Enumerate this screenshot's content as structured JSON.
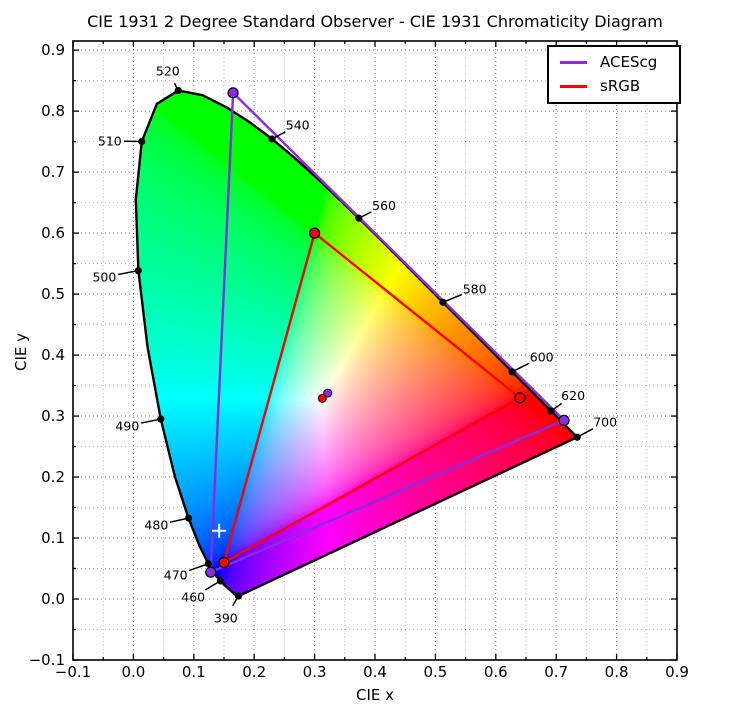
{
  "title": "CIE 1931 2 Degree Standard Observer - CIE 1931 Chromaticity Diagram",
  "axes": {
    "xlabel": "CIE x",
    "ylabel": "CIE y",
    "xlim": [
      -0.1,
      0.9
    ],
    "ylim": [
      -0.1,
      0.9
    ],
    "xticks": [
      {
        "v": -0.1,
        "label": "−0.1"
      },
      {
        "v": 0.0,
        "label": "0.0"
      },
      {
        "v": 0.1,
        "label": "0.1"
      },
      {
        "v": 0.2,
        "label": "0.2"
      },
      {
        "v": 0.3,
        "label": "0.3"
      },
      {
        "v": 0.4,
        "label": "0.4"
      },
      {
        "v": 0.5,
        "label": "0.5"
      },
      {
        "v": 0.6,
        "label": "0.6"
      },
      {
        "v": 0.7,
        "label": "0.7"
      },
      {
        "v": 0.8,
        "label": "0.8"
      },
      {
        "v": 0.9,
        "label": "0.9"
      }
    ],
    "yticks": [
      {
        "v": -0.1,
        "label": "−0.1"
      },
      {
        "v": 0.0,
        "label": "0.0"
      },
      {
        "v": 0.1,
        "label": "0.1"
      },
      {
        "v": 0.2,
        "label": "0.2"
      },
      {
        "v": 0.3,
        "label": "0.3"
      },
      {
        "v": 0.4,
        "label": "0.4"
      },
      {
        "v": 0.5,
        "label": "0.5"
      },
      {
        "v": 0.6,
        "label": "0.6"
      },
      {
        "v": 0.7,
        "label": "0.7"
      },
      {
        "v": 0.8,
        "label": "0.8"
      },
      {
        "v": 0.9,
        "label": "0.9"
      }
    ],
    "minor_step": 0.05,
    "grid": "dotted, major and minor"
  },
  "legend": {
    "position": "upper right",
    "entries": [
      {
        "label": "ACEScg",
        "color": "#8A2BE2"
      },
      {
        "label": "sRGB",
        "color": "#FF0000"
      }
    ]
  },
  "chart_data": {
    "type": "chromaticity-diagram",
    "title": "CIE 1931 2 Degree Standard Observer - CIE 1931 Chromaticity Diagram",
    "xlabel": "CIE x",
    "ylabel": "CIE y",
    "xlim": [
      -0.1,
      0.9
    ],
    "ylim": [
      -0.1,
      0.9
    ],
    "spectral_locus": [
      [
        380,
        0.1741,
        0.005
      ],
      [
        385,
        0.174,
        0.005
      ],
      [
        390,
        0.1738,
        0.0049
      ],
      [
        395,
        0.1736,
        0.0049
      ],
      [
        400,
        0.1733,
        0.0048
      ],
      [
        405,
        0.173,
        0.0048
      ],
      [
        410,
        0.1726,
        0.0048
      ],
      [
        415,
        0.1721,
        0.0048
      ],
      [
        420,
        0.1714,
        0.0051
      ],
      [
        425,
        0.1703,
        0.0058
      ],
      [
        430,
        0.1689,
        0.0069
      ],
      [
        435,
        0.1669,
        0.0086
      ],
      [
        440,
        0.1644,
        0.0109
      ],
      [
        445,
        0.1611,
        0.0138
      ],
      [
        450,
        0.1566,
        0.0177
      ],
      [
        455,
        0.151,
        0.0227
      ],
      [
        460,
        0.144,
        0.0297
      ],
      [
        465,
        0.1355,
        0.0399
      ],
      [
        470,
        0.1241,
        0.0578
      ],
      [
        475,
        0.1096,
        0.0868
      ],
      [
        480,
        0.0913,
        0.1327
      ],
      [
        485,
        0.0687,
        0.2007
      ],
      [
        490,
        0.0454,
        0.295
      ],
      [
        495,
        0.0235,
        0.4127
      ],
      [
        500,
        0.0082,
        0.5384
      ],
      [
        505,
        0.0039,
        0.6548
      ],
      [
        510,
        0.0139,
        0.7502
      ],
      [
        515,
        0.0389,
        0.812
      ],
      [
        520,
        0.0743,
        0.8338
      ],
      [
        525,
        0.1142,
        0.8262
      ],
      [
        530,
        0.1547,
        0.8059
      ],
      [
        535,
        0.1929,
        0.7816
      ],
      [
        540,
        0.2296,
        0.7543
      ],
      [
        545,
        0.2658,
        0.7243
      ],
      [
        550,
        0.3016,
        0.6923
      ],
      [
        555,
        0.3373,
        0.6589
      ],
      [
        560,
        0.3731,
        0.6245
      ],
      [
        565,
        0.4087,
        0.5896
      ],
      [
        570,
        0.4441,
        0.5547
      ],
      [
        575,
        0.4788,
        0.5202
      ],
      [
        580,
        0.5125,
        0.4866
      ],
      [
        585,
        0.5448,
        0.4544
      ],
      [
        590,
        0.5752,
        0.4242
      ],
      [
        595,
        0.6029,
        0.3965
      ],
      [
        600,
        0.627,
        0.3725
      ],
      [
        605,
        0.6482,
        0.3514
      ],
      [
        610,
        0.6658,
        0.334
      ],
      [
        615,
        0.6801,
        0.3197
      ],
      [
        620,
        0.6915,
        0.3083
      ],
      [
        625,
        0.7006,
        0.2993
      ],
      [
        630,
        0.7079,
        0.292
      ],
      [
        635,
        0.714,
        0.2859
      ],
      [
        640,
        0.719,
        0.2809
      ],
      [
        645,
        0.723,
        0.277
      ],
      [
        650,
        0.726,
        0.274
      ],
      [
        655,
        0.7283,
        0.2717
      ],
      [
        660,
        0.73,
        0.27
      ],
      [
        670,
        0.732,
        0.268
      ],
      [
        680,
        0.7334,
        0.2666
      ],
      [
        690,
        0.7344,
        0.2656
      ],
      [
        700,
        0.7347,
        0.2653
      ]
    ],
    "wavelength_annotations": [
      {
        "label": "390",
        "point": [
          0.1738,
          0.0049
        ],
        "text_pos": [
          0.153,
          -0.031
        ]
      },
      {
        "label": "460",
        "point": [
          0.144,
          0.0297
        ],
        "text_pos": [
          0.099,
          0.003
        ]
      },
      {
        "label": "470",
        "point": [
          0.1241,
          0.0578
        ],
        "text_pos": [
          0.07,
          0.039
        ]
      },
      {
        "label": "480",
        "point": [
          0.0913,
          0.1327
        ],
        "text_pos": [
          0.038,
          0.121
        ]
      },
      {
        "label": "490",
        "point": [
          0.0454,
          0.295
        ],
        "text_pos": [
          -0.01,
          0.284
        ]
      },
      {
        "label": "500",
        "point": [
          0.0082,
          0.5384
        ],
        "text_pos": [
          -0.048,
          0.528
        ]
      },
      {
        "label": "510",
        "point": [
          0.0139,
          0.7502
        ],
        "text_pos": [
          -0.039,
          0.751
        ]
      },
      {
        "label": "520",
        "point": [
          0.0743,
          0.8338
        ],
        "text_pos": [
          0.057,
          0.866
        ]
      },
      {
        "label": "540",
        "point": [
          0.2296,
          0.7543
        ],
        "text_pos": [
          0.272,
          0.777
        ]
      },
      {
        "label": "560",
        "point": [
          0.3731,
          0.6245
        ],
        "text_pos": [
          0.415,
          0.645
        ]
      },
      {
        "label": "580",
        "point": [
          0.5125,
          0.4866
        ],
        "text_pos": [
          0.565,
          0.508
        ]
      },
      {
        "label": "600",
        "point": [
          0.627,
          0.3725
        ],
        "text_pos": [
          0.676,
          0.397
        ]
      },
      {
        "label": "620",
        "point": [
          0.6915,
          0.3083
        ],
        "text_pos": [
          0.728,
          0.334
        ]
      },
      {
        "label": "700",
        "point": [
          0.7347,
          0.2653
        ],
        "text_pos": [
          0.781,
          0.29
        ]
      }
    ],
    "gamuts": [
      {
        "name": "ACEScg",
        "color": "#8A2BE2",
        "primaries": {
          "R": [
            0.713,
            0.293
          ],
          "G": [
            0.165,
            0.83
          ],
          "B": [
            0.128,
            0.044
          ]
        },
        "whitepoint": [
          0.32168,
          0.33767
        ]
      },
      {
        "name": "sRGB",
        "color": "#FF0000",
        "primaries": {
          "R": [
            0.64,
            0.33
          ],
          "G": [
            0.3,
            0.6
          ],
          "B": [
            0.15,
            0.06
          ]
        },
        "whitepoint": [
          0.3127,
          0.329
        ]
      }
    ],
    "extra_markers": [
      {
        "shape": "cross",
        "color": "#FFFFFF",
        "point": [
          0.142,
          0.112
        ]
      }
    ],
    "locus_line_color": "#000000",
    "grid_on": true,
    "legend_position": "upper right"
  }
}
